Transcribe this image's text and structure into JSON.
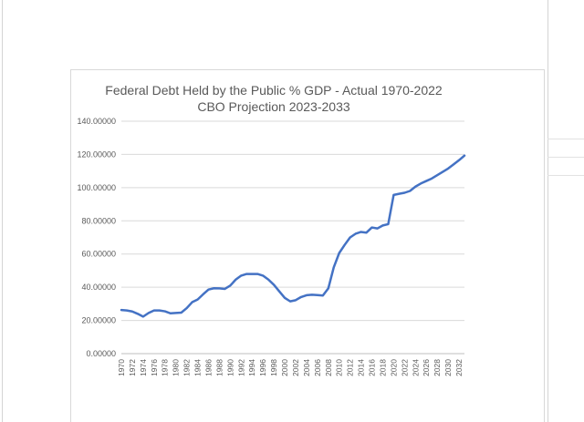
{
  "chart_data": {
    "type": "line",
    "title_lines": [
      "Federal Debt Held by the Public % GDP - Actual 1970-2022",
      "CBO Projection 2023-2033"
    ],
    "xlabel": "",
    "ylabel": "",
    "ylim": [
      0,
      140
    ],
    "y_ticks": [
      "0.00000",
      "20.00000",
      "40.00000",
      "60.00000",
      "80.00000",
      "100.00000",
      "120.00000",
      "140.00000"
    ],
    "x_tick_labels": [
      "1970",
      "1972",
      "1974",
      "1976",
      "1978",
      "1980",
      "1982",
      "1984",
      "1986",
      "1988",
      "1990",
      "1992",
      "1994",
      "1996",
      "1998",
      "2000",
      "2002",
      "2004",
      "2006",
      "2008",
      "2010",
      "2012",
      "2014",
      "2016",
      "2018",
      "2020",
      "2022",
      "2024",
      "2026",
      "2028",
      "2030",
      "2032"
    ],
    "grid": "horizontal",
    "legend": "none",
    "series": [
      {
        "name": "Federal Debt Held by the Public % GDP",
        "color": "#4472c4",
        "x": [
          1970,
          1971,
          1972,
          1973,
          1974,
          1975,
          1976,
          1977,
          1978,
          1979,
          1980,
          1981,
          1982,
          1983,
          1984,
          1985,
          1986,
          1987,
          1988,
          1989,
          1990,
          1991,
          1992,
          1993,
          1994,
          1995,
          1996,
          1997,
          1998,
          1999,
          2000,
          2001,
          2002,
          2003,
          2004,
          2005,
          2006,
          2007,
          2008,
          2009,
          2010,
          2011,
          2012,
          2013,
          2014,
          2015,
          2016,
          2017,
          2018,
          2019,
          2020,
          2021,
          2022,
          2023,
          2024,
          2025,
          2026,
          2027,
          2028,
          2029,
          2030,
          2031,
          2032,
          2033
        ],
        "values": [
          26.3,
          26.0,
          25.4,
          24.0,
          22.3,
          24.5,
          26.0,
          26.0,
          25.5,
          24.3,
          24.5,
          24.7,
          27.4,
          31.0,
          32.6,
          35.7,
          38.6,
          39.4,
          39.3,
          39.0,
          41.0,
          44.6,
          47.0,
          48.0,
          48.0,
          48.0,
          47.0,
          44.6,
          41.5,
          37.5,
          33.6,
          31.5,
          32.2,
          34.1,
          35.2,
          35.5,
          35.3,
          35.0,
          39.3,
          52.0,
          60.6,
          65.5,
          70.0,
          72.2,
          73.3,
          72.9,
          76.0,
          75.4,
          77.2,
          78.0,
          95.6,
          96.3,
          96.9,
          98.0,
          100.6,
          102.5,
          104.0,
          105.5,
          107.5,
          109.5,
          111.5,
          114.0,
          116.5,
          119.3
        ]
      }
    ]
  }
}
